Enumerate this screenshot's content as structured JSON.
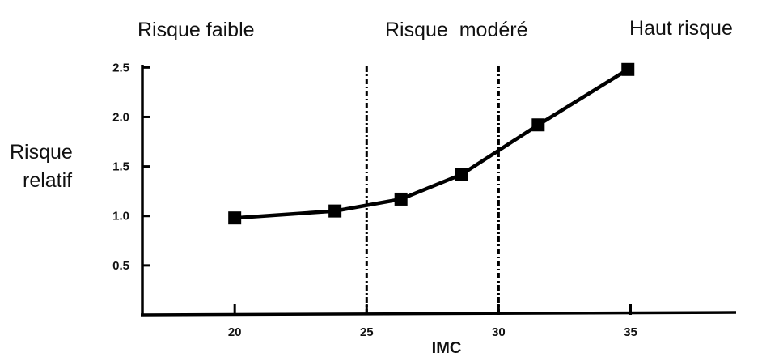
{
  "chart_data": {
    "type": "line",
    "title": "",
    "xlabel": "IMC",
    "ylabel_lines": [
      "Risque",
      "relatif"
    ],
    "xlim": [
      16.5,
      39
    ],
    "ylim": [
      0,
      2.65
    ],
    "x_ticks": [
      20,
      25,
      30,
      35
    ],
    "x_tick_labels": [
      "20",
      "25",
      "30",
      "35"
    ],
    "y_ticks": [
      0.5,
      1.0,
      1.5,
      2.0,
      2.5
    ],
    "y_tick_labels": [
      "0.5",
      "1.0",
      "1.5",
      "2.0",
      "2.5"
    ],
    "grid": false,
    "zone_labels": [
      "Risque faible",
      "Risque  modéré",
      "Haut risque"
    ],
    "thresholds": [
      25,
      30
    ],
    "series": [
      {
        "x": [
          20,
          23.8,
          26.3,
          28.6,
          31.5,
          34.9
        ],
        "y": [
          0.98,
          1.05,
          1.17,
          1.42,
          1.92,
          2.48
        ]
      }
    ],
    "colors": {
      "line": "#000000",
      "marker": "#000000",
      "axis": "#000000"
    }
  }
}
